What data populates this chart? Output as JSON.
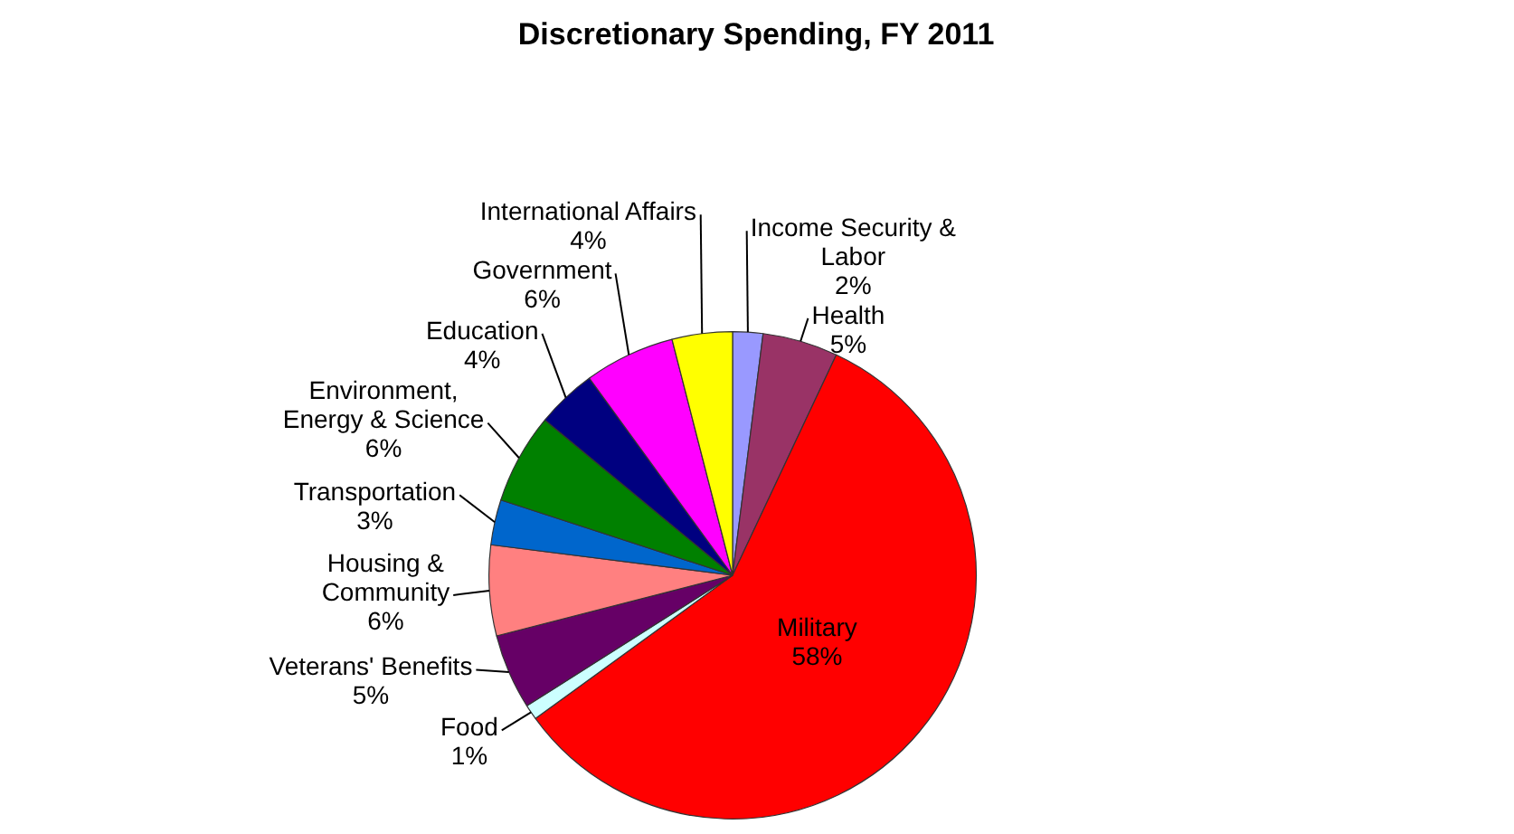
{
  "chart_data": {
    "type": "pie",
    "title": "Discretionary Spending, FY 2011",
    "categories": [
      "Income Security & Labor",
      "Health",
      "Military",
      "Food",
      "Veterans' Benefits",
      "Housing & Community",
      "Transportation",
      "Environment, Energy & Science",
      "Education",
      "Government",
      "International Affairs"
    ],
    "values": [
      2,
      5,
      58,
      1,
      5,
      6,
      3,
      6,
      4,
      6,
      4
    ],
    "value_labels": [
      "2%",
      "5%",
      "58%",
      "1%",
      "5%",
      "6%",
      "3%",
      "6%",
      "4%",
      "6%",
      "4%"
    ],
    "colors": [
      "#9999ff",
      "#993366",
      "#ff0000",
      "#ccffff",
      "#660066",
      "#ff8080",
      "#0066cc",
      "#008000",
      "#000080",
      "#ff00ff",
      "#ffff00"
    ],
    "legend": false
  }
}
